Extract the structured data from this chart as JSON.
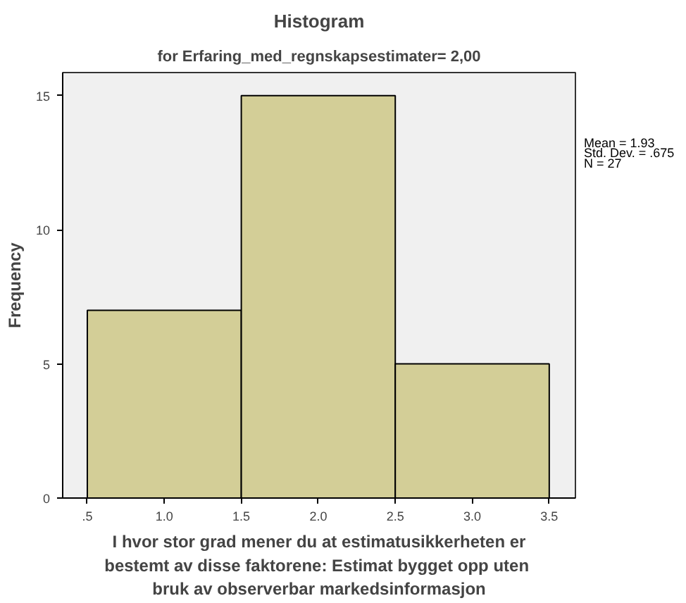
{
  "chart_data": {
    "type": "histogram",
    "title": "Histogram",
    "subtitle": "for Erfaring_med_regnskapsestimater= 2,00",
    "xlabel": "I hvor stor grad mener du at estimatusikkerheten er bestemt av disse faktorene:  Estimat bygget opp uten bruk av observerbar markedsinformasjon",
    "ylabel": "Frequency",
    "bins": [
      0.5,
      1.5,
      2.5,
      3.5
    ],
    "values": [
      7,
      15,
      5
    ],
    "color": "#d3ce97",
    "xlim": [
      0.34,
      3.67
    ],
    "ylim": [
      0,
      15.86
    ],
    "xticks": [
      {
        "value": 0.5,
        "label": ".5"
      },
      {
        "value": 1.0,
        "label": "1.0"
      },
      {
        "value": 1.5,
        "label": "1.5"
      },
      {
        "value": 2.0,
        "label": "2.0"
      },
      {
        "value": 2.5,
        "label": "2.5"
      },
      {
        "value": 3.0,
        "label": "3.0"
      },
      {
        "value": 3.5,
        "label": "3.5"
      }
    ],
    "yticks": [
      0,
      5,
      10,
      15
    ],
    "annotations": [
      "Mean = 1.93",
      "Std. Dev. = .675",
      "N = 27"
    ],
    "grid": false
  }
}
